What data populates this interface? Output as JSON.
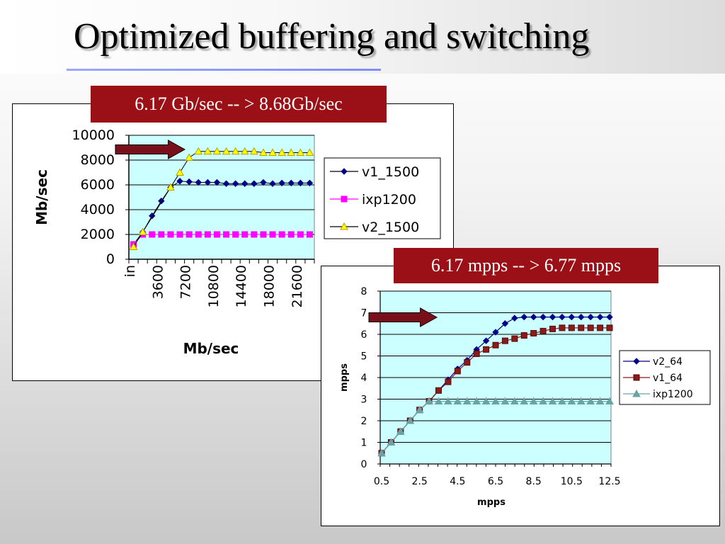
{
  "slide": {
    "title": "Optimized buffering and switching"
  },
  "callouts": {
    "left": "6.17 Gb/sec -- > 8.68Gb/sec",
    "right": "6.17 mpps -- > 6.77 mpps"
  },
  "colors": {
    "plot_bg": "#ccffff",
    "callout_bg": "#9b0f16",
    "arrow": "#7a0f1c",
    "v1_1500": "#00008b",
    "ixp1200_left": "#ff00ff",
    "v2_1500": "#ffff00",
    "v2_64": "#00008b",
    "v1_64": "#8b1a1a",
    "ixp1200_right": "#6aa3a3"
  },
  "chart_data": [
    {
      "type": "line",
      "title": "",
      "xlabel": "Mb/sec",
      "ylabel": "Mb/sec",
      "ylim": [
        0,
        10000
      ],
      "yticks": [
        "0",
        "2000",
        "4000",
        "6000",
        "8000",
        "10000"
      ],
      "xtick_labels": [
        "in",
        "3600",
        "7200",
        "10800",
        "14400",
        "18000",
        "21600"
      ],
      "grid": true,
      "legend": "right",
      "series": [
        {
          "name": "v1_1500",
          "color_key": "v1_1500",
          "marker": "diamond",
          "values": [
            1200,
            2200,
            3500,
            4700,
            5800,
            6300,
            6250,
            6200,
            6200,
            6200,
            6100,
            6100,
            6100,
            6100,
            6200,
            6100,
            6150,
            6150,
            6150,
            6150
          ]
        },
        {
          "name": "ixp1200",
          "color_key": "ixp1200_left",
          "marker": "square",
          "values": [
            1200,
            2000,
            2000,
            2000,
            2000,
            2000,
            2000,
            2000,
            2000,
            2000,
            2000,
            2000,
            2000,
            2000,
            2000,
            2000,
            2000,
            2000,
            2000,
            2000
          ]
        },
        {
          "name": "v2_1500",
          "color_key": "v2_1500",
          "marker": "triangle",
          "values": [
            1000,
            2200,
            null,
            null,
            5800,
            7000,
            8200,
            8700,
            8700,
            8700,
            8700,
            8700,
            8700,
            8700,
            8600,
            8600,
            8600,
            8600,
            8600,
            8600
          ]
        }
      ]
    },
    {
      "type": "line",
      "title": "",
      "xlabel": "mpps",
      "ylabel": "mpps",
      "ylim": [
        0,
        8
      ],
      "yticks": [
        "0",
        "1",
        "2",
        "3",
        "4",
        "5",
        "6",
        "7",
        "8"
      ],
      "xtick_labels": [
        "0.5",
        "2.5",
        "4.5",
        "6.5",
        "8.5",
        "10.5",
        "12.5"
      ],
      "xlim": [
        0.5,
        12.5
      ],
      "grid": true,
      "legend": "right",
      "series": [
        {
          "name": "v2_64",
          "color_key": "v2_64",
          "marker": "diamond",
          "x": [
            0.5,
            1,
            1.5,
            2,
            2.5,
            3,
            3.5,
            4,
            4.5,
            5,
            5.5,
            6,
            6.5,
            7,
            7.5,
            8,
            8.5,
            9,
            9.5,
            10,
            10.5,
            11,
            11.5,
            12,
            12.5
          ],
          "values": [
            0.5,
            1.0,
            1.5,
            2.0,
            2.5,
            2.9,
            3.4,
            3.9,
            4.4,
            4.8,
            5.3,
            5.7,
            6.1,
            6.5,
            6.75,
            6.8,
            6.8,
            6.8,
            6.8,
            6.8,
            6.8,
            6.8,
            6.8,
            6.8,
            6.8
          ]
        },
        {
          "name": "v1_64",
          "color_key": "v1_64",
          "marker": "square",
          "x": [
            0.5,
            1,
            1.5,
            2,
            2.5,
            3,
            3.5,
            4,
            4.5,
            5,
            5.5,
            6,
            6.5,
            7,
            7.5,
            8,
            8.5,
            9,
            9.5,
            10,
            10.5,
            11,
            11.5,
            12,
            12.5
          ],
          "values": [
            0.5,
            1.0,
            1.5,
            2.0,
            2.5,
            2.9,
            3.4,
            3.8,
            4.3,
            4.7,
            5.1,
            5.3,
            5.5,
            5.7,
            5.8,
            5.95,
            6.05,
            6.15,
            6.25,
            6.3,
            6.3,
            6.3,
            6.3,
            6.3,
            6.3
          ]
        },
        {
          "name": "ixp1200",
          "color_key": "ixp1200_right",
          "marker": "triangle",
          "x": [
            0.5,
            1,
            1.5,
            2,
            2.5,
            3,
            3.5,
            4,
            4.5,
            5,
            5.5,
            6,
            6.5,
            7,
            7.5,
            8,
            8.5,
            9,
            9.5,
            10,
            10.5,
            11,
            11.5,
            12,
            12.5
          ],
          "values": [
            0.5,
            1.0,
            1.5,
            2.0,
            2.5,
            2.9,
            2.9,
            2.9,
            2.9,
            2.9,
            2.9,
            2.9,
            2.9,
            2.9,
            2.9,
            2.9,
            2.9,
            2.9,
            2.9,
            2.9,
            2.9,
            2.9,
            2.9,
            2.9,
            2.9
          ]
        }
      ]
    }
  ]
}
